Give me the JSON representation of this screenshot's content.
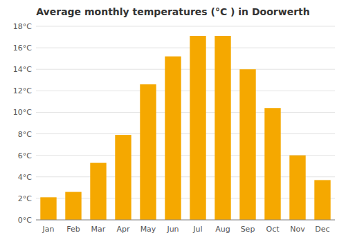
{
  "chart_data": {
    "type": "bar",
    "title": "Average monthly temperatures (°C ) in Doorwerth",
    "categories": [
      "Jan",
      "Feb",
      "Mar",
      "Apr",
      "May",
      "Jun",
      "Jul",
      "Aug",
      "Sep",
      "Oct",
      "Nov",
      "Dec"
    ],
    "values": [
      2.1,
      2.6,
      5.3,
      7.9,
      12.6,
      15.2,
      17.1,
      17.1,
      14.0,
      10.4,
      6.0,
      3.7
    ],
    "color": "#F5A800",
    "ylim": [
      0,
      18
    ],
    "yticks": [
      {
        "value": 0,
        "label": "0°C"
      },
      {
        "value": 2,
        "label": "2°C"
      },
      {
        "value": 4,
        "label": "4°C"
      },
      {
        "value": 6,
        "label": "6°C"
      },
      {
        "value": 8,
        "label": "8°C"
      },
      {
        "value": 10,
        "label": "10°C"
      },
      {
        "value": 12,
        "label": "12°C"
      },
      {
        "value": 14,
        "label": "14°C"
      },
      {
        "value": 16,
        "label": "16°C"
      },
      {
        "value": 18,
        "label": "18°C"
      }
    ],
    "grid": true
  }
}
